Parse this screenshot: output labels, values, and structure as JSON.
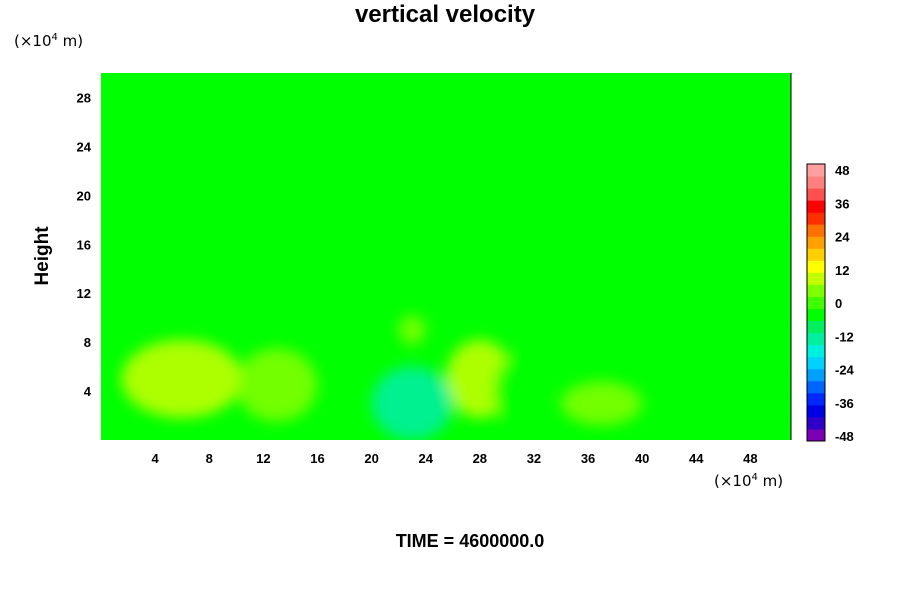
{
  "chart_data": {
    "type": "heatmap",
    "title": "vertical velocity",
    "ylabel": "Height",
    "xlabel": "",
    "y_unit": {
      "prefix": "(×10",
      "exp": "4",
      "suffix": " m)"
    },
    "x_unit": {
      "prefix": "(×10",
      "exp": "4",
      "suffix": " m)"
    },
    "time_label": "TIME = 4600000.0",
    "xlim": [
      0,
      51
    ],
    "ylim": [
      0,
      30
    ],
    "x_ticks": [
      "4",
      "8",
      "12",
      "16",
      "20",
      "24",
      "28",
      "32",
      "36",
      "40",
      "44",
      "48"
    ],
    "y_ticks": [
      "4",
      "8",
      "12",
      "16",
      "20",
      "24",
      "28"
    ],
    "colorbar": {
      "min": -48,
      "max": 48,
      "ticks": [
        "48",
        "36",
        "24",
        "12",
        "0",
        "-12",
        "-24",
        "-36",
        "-48"
      ],
      "colors": [
        "#7a00b4",
        "#3000c8",
        "#0000e6",
        "#0028ff",
        "#0064ff",
        "#00a0ff",
        "#00d2ff",
        "#00f0e0",
        "#00f0a0",
        "#00f060",
        "#00ff00",
        "#40ff00",
        "#80ff00",
        "#c0ff00",
        "#ffff00",
        "#ffd000",
        "#ffa000",
        "#ff7000",
        "#ff3000",
        "#ff0000",
        "#ff5050",
        "#ff8080",
        "#ffa0a0"
      ]
    },
    "background_value": 0,
    "features": [
      {
        "kind": "updraft",
        "x": 6,
        "y": 5,
        "rx": 4.5,
        "ry": 3.2,
        "value": 7
      },
      {
        "kind": "updraft",
        "x": 13,
        "y": 4.5,
        "rx": 3,
        "ry": 3,
        "value": 5
      },
      {
        "kind": "updraft",
        "x": 28,
        "y": 5,
        "rx": 2.5,
        "ry": 3.2,
        "value": 7
      },
      {
        "kind": "updraft",
        "x": 37,
        "y": 3,
        "rx": 3,
        "ry": 1.8,
        "value": 5
      },
      {
        "kind": "updraft",
        "x": 23,
        "y": 9,
        "rx": 1,
        "ry": 1.2,
        "value": 5
      },
      {
        "kind": "downdraft",
        "x": 23,
        "y": 3,
        "rx": 3,
        "ry": 3,
        "value": -12
      },
      {
        "kind": "downdraft",
        "x": 31,
        "y": 4,
        "rx": 2,
        "ry": 3,
        "value": -5
      },
      {
        "kind": "downdraft",
        "x": 44,
        "y": 3,
        "rx": 2.5,
        "ry": 2.2,
        "value": -5
      },
      {
        "kind": "downdraft",
        "x": 49,
        "y": 12,
        "rx": 2,
        "ry": 3,
        "value": -3
      }
    ]
  }
}
